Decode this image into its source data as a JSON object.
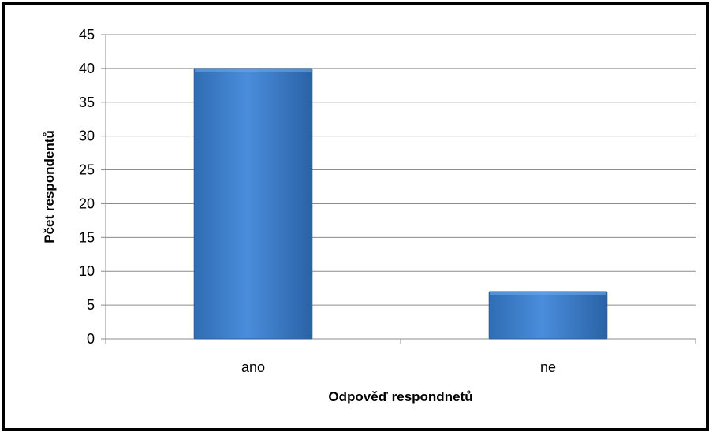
{
  "chart_data": {
    "type": "bar",
    "title": "",
    "categories": [
      "ano",
      "ne"
    ],
    "values": [
      40,
      7
    ],
    "xlabel": "Odpověď respondnetů",
    "ylabel": "Pčet respondentů",
    "ylim": [
      0,
      45
    ],
    "yticks": [
      0,
      5,
      10,
      15,
      20,
      25,
      30,
      35,
      40,
      45
    ],
    "grid": true,
    "legend": "none",
    "bar_color": "#3a7cc9"
  }
}
